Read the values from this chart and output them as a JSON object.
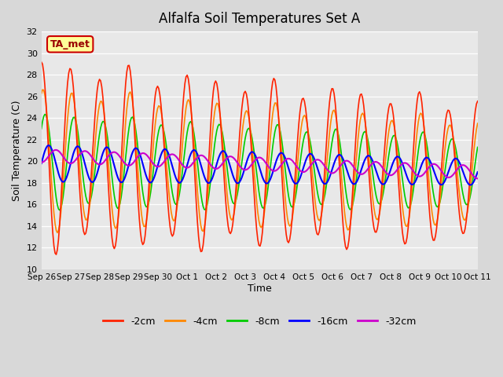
{
  "title": "Alfalfa Soil Temperatures Set A",
  "xlabel": "Time",
  "ylabel": "Soil Temperature (C)",
  "ylim": [
    10,
    32
  ],
  "yticks": [
    10,
    12,
    14,
    16,
    18,
    20,
    22,
    24,
    26,
    28,
    30,
    32
  ],
  "x_labels": [
    "Sep 26",
    "Sep 27",
    "Sep 28",
    "Sep 29",
    "Sep 30",
    "Oct 1",
    "Oct 2",
    "Oct 3",
    "Oct 4",
    "Oct 5",
    "Oct 6",
    "Oct 7",
    "Oct 8",
    "Oct 9",
    "Oct 10",
    "Oct 11"
  ],
  "series_labels": [
    "-2cm",
    "-4cm",
    "-8cm",
    "-16cm",
    "-32cm"
  ],
  "series_colors": [
    "#ff2200",
    "#ff8800",
    "#00cc00",
    "#0000ff",
    "#cc00cc"
  ],
  "fig_facecolor": "#d8d8d8",
  "ax_facecolor": "#e8e8e8",
  "annotation_text": "TA_met",
  "annotation_bg": "#ffff99",
  "annotation_border": "#cc0000"
}
